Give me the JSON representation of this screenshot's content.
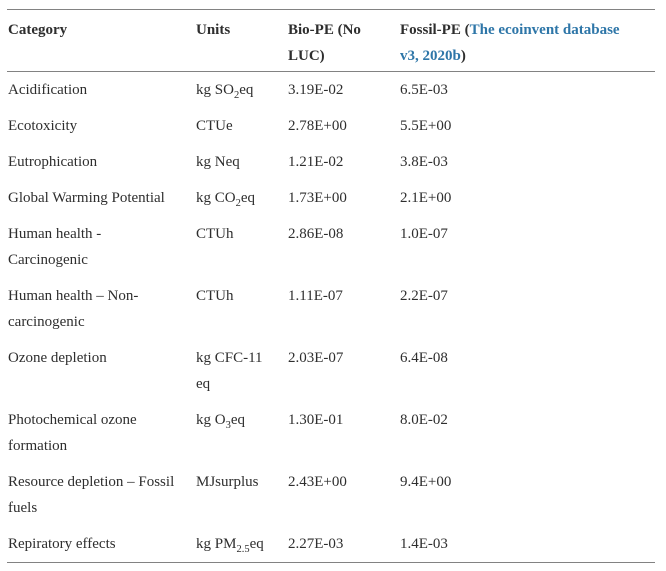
{
  "colors": {
    "text": "#2e2e2e",
    "link_blue": "#2e76a8",
    "rule_gray": "#828282",
    "background": "#ffffff"
  },
  "table": {
    "columns": {
      "category": "Category",
      "units": "Units",
      "bio": "Bio-PE (No LUC)"
    },
    "fossil_header": {
      "prefix": "Fossil-PE (",
      "link_text": "The ecoinvent database v3, 2020b",
      "suffix": ")"
    },
    "rows": [
      {
        "category": "Acidification",
        "units": [
          {
            "t": "kg SO"
          },
          {
            "t": "2",
            "sub": true
          },
          {
            "t": "eq"
          }
        ],
        "bio": "3.19E-02",
        "fossil": "6.5E-03"
      },
      {
        "category": "Ecotoxicity",
        "units": [
          {
            "t": "CTUe"
          }
        ],
        "bio": "2.78E+00",
        "fossil": "5.5E+00"
      },
      {
        "category": "Eutrophication",
        "units": [
          {
            "t": "kg Neq"
          }
        ],
        "bio": "1.21E-02",
        "fossil": "3.8E-03"
      },
      {
        "category": "Global Warming Potential",
        "units": [
          {
            "t": "kg CO"
          },
          {
            "t": "2",
            "sub": true
          },
          {
            "t": "eq"
          }
        ],
        "bio": "1.73E+00",
        "fossil": "2.1E+00"
      },
      {
        "category": "Human health - Carcinogenic",
        "units": [
          {
            "t": "CTUh"
          }
        ],
        "bio": "2.86E-08",
        "fossil": "1.0E-07"
      },
      {
        "category": "Human health – Non-carcinogenic",
        "units": [
          {
            "t": "CTUh"
          }
        ],
        "bio": "1.11E-07",
        "fossil": "2.2E-07"
      },
      {
        "category": "Ozone depletion",
        "units": [
          {
            "t": "kg CFC-11 eq"
          }
        ],
        "bio": "2.03E-07",
        "fossil": "6.4E-08"
      },
      {
        "category": "Photochemical ozone formation",
        "units": [
          {
            "t": "kg O"
          },
          {
            "t": "3",
            "sub": true
          },
          {
            "t": "eq"
          }
        ],
        "bio": "1.30E-01",
        "fossil": "8.0E-02"
      },
      {
        "category": "Resource depletion – Fossil fuels",
        "units": [
          {
            "t": "MJsurplus"
          }
        ],
        "bio": "2.43E+00",
        "fossil": "9.4E+00"
      },
      {
        "category": "Repiratory effects",
        "units": [
          {
            "t": "kg PM"
          },
          {
            "t": "2.5",
            "sub": true
          },
          {
            "t": "eq"
          }
        ],
        "bio": "2.27E-03",
        "fossil": "1.4E-03"
      }
    ]
  }
}
